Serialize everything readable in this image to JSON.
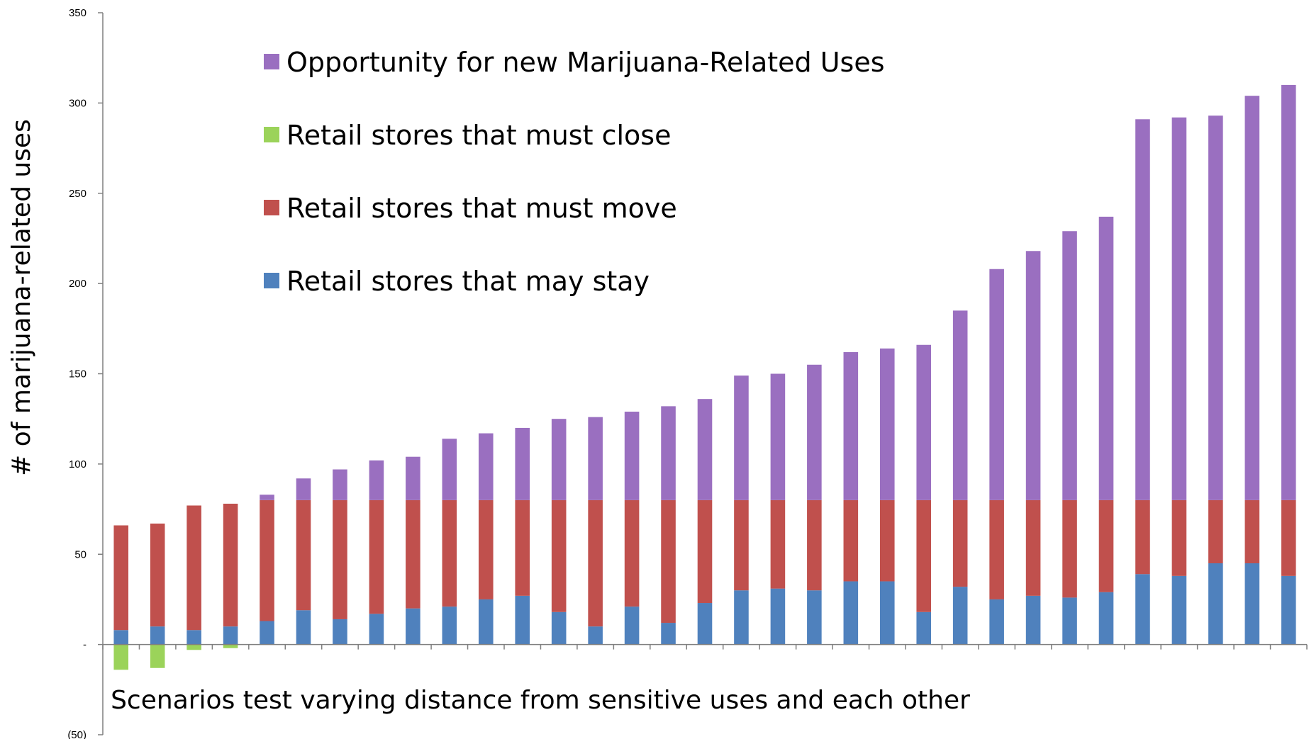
{
  "chart_data": {
    "type": "bar",
    "stacked": true,
    "title": "",
    "xlabel": "Scenarios test varying distance from sensitive uses and each other",
    "ylabel": "# of marijuana-related uses",
    "ylim": [
      -50,
      350
    ],
    "yticks": [
      {
        "value": 350,
        "label": "350"
      },
      {
        "value": 300,
        "label": "300"
      },
      {
        "value": 250,
        "label": "250"
      },
      {
        "value": 200,
        "label": "200"
      },
      {
        "value": 150,
        "label": "150"
      },
      {
        "value": 100,
        "label": "100"
      },
      {
        "value": 50,
        "label": "50"
      },
      {
        "value": 0,
        "label": "-"
      },
      {
        "value": -50,
        "label": "(50)"
      }
    ],
    "grid": false,
    "legend_position": "top-left",
    "scenario_count": 33,
    "series": [
      {
        "name": "Retail stores that may stay",
        "color": "#4f81bd",
        "values": [
          8,
          10,
          8,
          10,
          13,
          19,
          14,
          17,
          20,
          21,
          25,
          27,
          18,
          10,
          21,
          12,
          23,
          30,
          31,
          30,
          35,
          35,
          18,
          32,
          25,
          27,
          26,
          29,
          39,
          38,
          45,
          45,
          38
        ]
      },
      {
        "name": "Retail stores that must move",
        "color": "#c0504d",
        "values": [
          58,
          57,
          69,
          68,
          67,
          61,
          66,
          63,
          60,
          59,
          55,
          53,
          62,
          70,
          59,
          68,
          57,
          50,
          49,
          50,
          45,
          45,
          62,
          48,
          55,
          53,
          54,
          51,
          41,
          42,
          35,
          35,
          42
        ]
      },
      {
        "name": "Retail stores that must close",
        "color": "#9bd35a",
        "values": [
          -14,
          -13,
          -3,
          -2,
          0,
          0,
          0,
          0,
          0,
          0,
          0,
          0,
          0,
          0,
          0,
          0,
          0,
          0,
          0,
          0,
          0,
          0,
          0,
          0,
          0,
          0,
          0,
          0,
          0,
          0,
          0,
          0,
          0
        ]
      },
      {
        "name": "Opportunity for new Marijuana-Related Uses",
        "color": "#9a6fc0",
        "values": [
          0,
          0,
          0,
          0,
          3,
          12,
          17,
          22,
          24,
          34,
          37,
          40,
          45,
          46,
          49,
          52,
          56,
          69,
          70,
          75,
          82,
          84,
          86,
          105,
          128,
          138,
          149,
          157,
          211,
          212,
          213,
          224,
          230
        ]
      }
    ],
    "legend_order": [
      3,
      2,
      1,
      0
    ]
  }
}
